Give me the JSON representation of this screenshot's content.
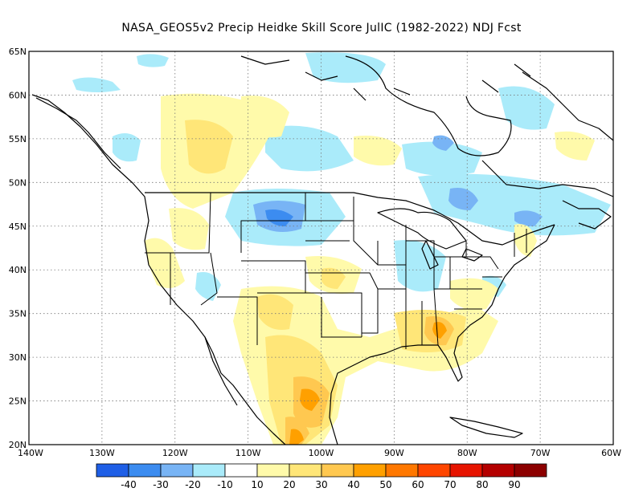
{
  "title": "NASA_GEOS5v2 Precip Heidke Skill Score JulIC (1982-2022) NDJ Fcst",
  "map": {
    "lon_range": [
      -140,
      -60
    ],
    "lat_range": [
      20,
      65
    ],
    "lon_ticks": [
      "140W",
      "130W",
      "120W",
      "110W",
      "100W",
      "90W",
      "80W",
      "70W",
      "60W"
    ],
    "lat_ticks": [
      "65N",
      "60N",
      "55N",
      "50N",
      "45N",
      "40N",
      "35N",
      "30N",
      "25N",
      "20N"
    ],
    "grid": "dotted",
    "colors": {
      "c_m40": "#1f5fe6",
      "c_m30": "#3c8cf0",
      "c_m20": "#78b4f5",
      "c_m10": "#aaebfa",
      "c_0": "#ffffff",
      "c_10": "#fffaaa",
      "c_20": "#ffe678",
      "c_30": "#ffc850",
      "c_40": "#ffa000",
      "c_50": "#ff7800",
      "c_60": "#ff4600",
      "c_70": "#e61400",
      "c_80": "#b40000",
      "c_90": "#8c0000"
    }
  },
  "colorbar": {
    "colors": [
      "#1f5fe6",
      "#3c8cf0",
      "#78b4f5",
      "#aaebfa",
      "#ffffff",
      "#fffaaa",
      "#ffe678",
      "#ffc850",
      "#ffa000",
      "#ff7800",
      "#ff4600",
      "#e61400",
      "#b40000",
      "#8c0000"
    ],
    "labels": [
      "-40",
      "-30",
      "-20",
      "-10",
      "10",
      "20",
      "30",
      "40",
      "50",
      "60",
      "70",
      "80",
      "90"
    ]
  }
}
